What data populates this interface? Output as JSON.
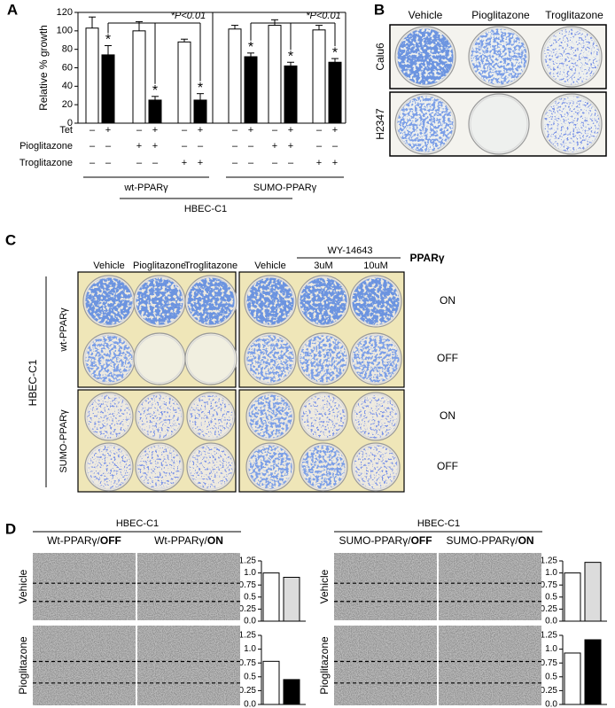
{
  "panel_labels": [
    "A",
    "B",
    "C",
    "D"
  ],
  "chart_data": [
    {
      "type": "bar",
      "y_label": "Relative % growth",
      "ylim": [
        0,
        120
      ],
      "yticks": [
        0,
        20,
        40,
        60,
        80,
        100,
        120
      ],
      "values": [
        103,
        74,
        100,
        25,
        88,
        25,
        102,
        72,
        106,
        62,
        101,
        66
      ],
      "errors": [
        12,
        10,
        10,
        4,
        3,
        7,
        4,
        4,
        6,
        4,
        5,
        4
      ],
      "colors": [
        "#ffffff",
        "#000000",
        "#ffffff",
        "#000000",
        "#ffffff",
        "#000000",
        "#ffffff",
        "#000000",
        "#ffffff",
        "#000000",
        "#ffffff",
        "#000000"
      ],
      "markers": [
        null,
        "*",
        null,
        "*",
        null,
        "*",
        null,
        "*",
        null,
        "*",
        null,
        "*"
      ],
      "significance": [
        "*P<0.01",
        "*P<0.01"
      ],
      "conditions": [
        {
          "name": "Tet",
          "values": [
            "–",
            "+",
            "–",
            "+",
            "–",
            "+",
            "–",
            "+",
            "–",
            "+",
            "–",
            "+"
          ]
        },
        {
          "name": "Pioglitazone",
          "values": [
            "–",
            "–",
            "+",
            "+",
            "–",
            "–",
            "–",
            "–",
            "+",
            "+",
            "–",
            "–"
          ]
        },
        {
          "name": "Troglitazone",
          "values": [
            "–",
            "–",
            "–",
            "–",
            "+",
            "+",
            "–",
            "–",
            "–",
            "–",
            "+",
            "+"
          ]
        }
      ],
      "groups": [
        "wt-PPARγ",
        "SUMO-PPARγ"
      ],
      "group_label": "HBEC-C1"
    },
    {
      "type": "bar",
      "ylim": [
        0,
        1.25
      ],
      "yticks": [
        {
          "value": 0,
          "label": "0.0"
        },
        0.25,
        0.5,
        0.75,
        {
          "value": 1,
          "label": "1.0"
        },
        1.25
      ],
      "values": [
        1.0,
        0.91
      ],
      "colors": [
        "#ffffff",
        "#dcdcdc"
      ]
    },
    {
      "type": "bar",
      "ylim": [
        0,
        1.25
      ],
      "yticks": [
        {
          "value": 0,
          "label": "0.0"
        },
        0.25,
        0.5,
        0.75,
        {
          "value": 1,
          "label": "1.0"
        },
        1.25
      ],
      "values": [
        0.78,
        0.45
      ],
      "colors": [
        "#ffffff",
        "#000000"
      ]
    },
    {
      "type": "bar",
      "ylim": [
        0,
        1.25
      ],
      "yticks": [
        {
          "value": 0,
          "label": "0.0"
        },
        0.25,
        0.5,
        0.75,
        {
          "value": 1,
          "label": "1.0"
        },
        1.25
      ],
      "values": [
        1.0,
        1.22
      ],
      "colors": [
        "#ffffff",
        "#dcdcdc"
      ]
    },
    {
      "type": "bar",
      "ylim": [
        0,
        1.25
      ],
      "yticks": [
        {
          "value": 0,
          "label": "0.0"
        },
        0.25,
        0.5,
        0.75,
        {
          "value": 1,
          "label": "1.0"
        },
        1.25
      ],
      "values": [
        0.93,
        1.17
      ],
      "colors": [
        "#ffffff",
        "#000000"
      ]
    }
  ],
  "panel_b": {
    "columns": [
      "Vehicle",
      "Pioglitazone",
      "Troglitazone"
    ],
    "rows": [
      "Calu6",
      "H2347"
    ]
  },
  "panel_c": {
    "columns": [
      "Vehicle",
      "Pioglitazone",
      "Troglitazone",
      "Vehicle",
      "3uM",
      "10uM"
    ],
    "treatment": "WY-14643",
    "status_header": "PPARγ",
    "statuses": [
      "ON",
      "OFF",
      "ON",
      "OFF"
    ],
    "groups": [
      "wt-PPARγ",
      "SUMO-PPARγ"
    ],
    "cell_line": "HBEC-C1"
  },
  "panel_d": {
    "panels": [
      {
        "cell_line": "HBEC-C1",
        "columns": [
          {
            "name": "Wt-PPARγ/",
            "status": "OFF"
          },
          {
            "name": "Wt-PPARγ/",
            "status": "ON"
          }
        ],
        "rows": [
          "Vehicle",
          "Pioglitazone"
        ]
      },
      {
        "cell_line": "HBEC-C1",
        "columns": [
          {
            "name": "SUMO-PPARγ/",
            "status": "OFF"
          },
          {
            "name": "SUMO-PPARγ/",
            "status": "ON"
          }
        ],
        "rows": [
          "Vehicle",
          "Pioglitazone"
        ]
      }
    ]
  }
}
